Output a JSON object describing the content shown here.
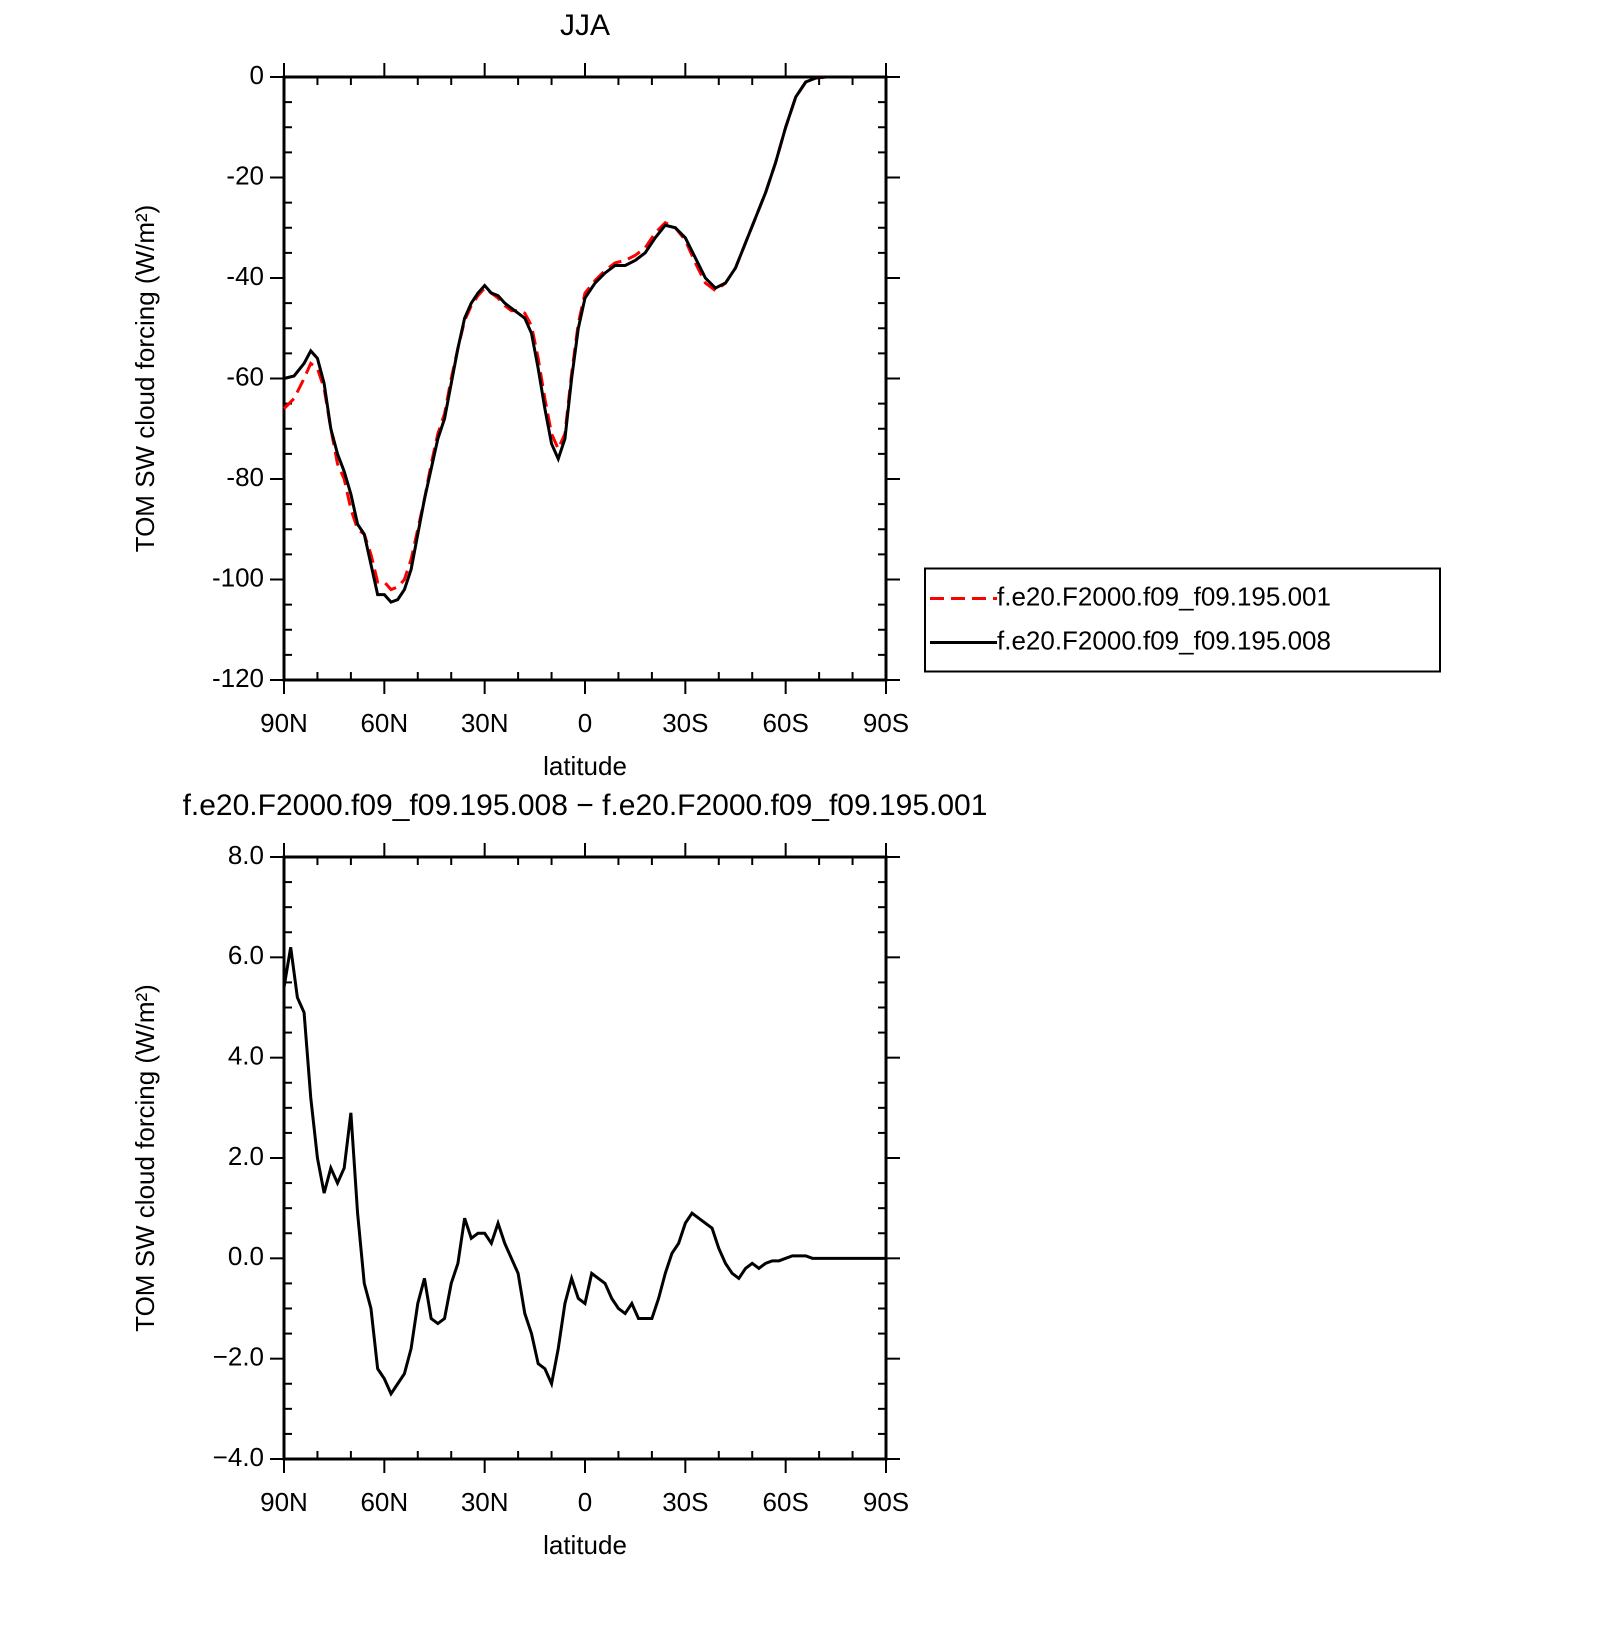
{
  "chart_data": [
    {
      "type": "line",
      "title": "JJA",
      "x_label": "latitude",
      "y_label": "TOM SW cloud forcing (W/m²)",
      "x": [
        90,
        87,
        84,
        82,
        80,
        78,
        76,
        74,
        72,
        70,
        68,
        66,
        64,
        62,
        60,
        58,
        56,
        54,
        52,
        50,
        48,
        46,
        44,
        42,
        40,
        38,
        36,
        34,
        32,
        30,
        28,
        26,
        24,
        22,
        20,
        18,
        16,
        14,
        12,
        10,
        8,
        6,
        4,
        2,
        0,
        -3,
        -6,
        -9,
        -12,
        -15,
        -18,
        -21,
        -24,
        -27,
        -30,
        -33,
        -36,
        -39,
        -42,
        -45,
        -48,
        -51,
        -54,
        -57,
        -60,
        -63,
        -66,
        -69,
        -72,
        -78,
        -84,
        -90
      ],
      "xlim": [
        90,
        -90
      ],
      "xticks": [
        {
          "value": 90,
          "label": "90N"
        },
        {
          "value": 60,
          "label": "60N"
        },
        {
          "value": 30,
          "label": "30N"
        },
        0,
        {
          "value": -30,
          "label": "30S"
        },
        {
          "value": -60,
          "label": "60S"
        },
        {
          "value": -90,
          "label": "90S"
        }
      ],
      "ylim": [
        -120,
        0
      ],
      "yticks": [
        0,
        -20,
        -40,
        -60,
        -80,
        -100,
        -120
      ],
      "legend": "right",
      "series": [
        {
          "name": "f.e20.F2000.f09_f09.195.001",
          "color": "#ff0000",
          "dashed": true,
          "values": [
            -66,
            -64,
            -60,
            -57,
            -58,
            -62,
            -70,
            -77,
            -80,
            -86,
            -90,
            -91,
            -95,
            -100.5,
            -100.5,
            -102,
            -101.5,
            -100,
            -96,
            -90,
            -84,
            -77,
            -71,
            -67,
            -60,
            -54,
            -48.5,
            -45.5,
            -43.5,
            -42,
            -43,
            -44,
            -45.5,
            -46.5,
            -46.5,
            -47,
            -49.5,
            -56,
            -64,
            -71,
            -74,
            -71,
            -59,
            -49,
            -43,
            -40.5,
            -38.5,
            -37,
            -36.5,
            -35.5,
            -34,
            -31,
            -29,
            -30,
            -32.5,
            -37,
            -41,
            -42.5,
            -41,
            -38,
            -33,
            -28,
            -23,
            -17,
            -10,
            -4,
            -1,
            -0.2,
            0,
            0,
            0,
            0
          ]
        },
        {
          "name": "f.e20.F2000.f09_f09.195.008",
          "color": "#000000",
          "dashed": false,
          "values": [
            -60,
            -59.5,
            -57,
            -54.5,
            -56,
            -61,
            -70,
            -75,
            -78.5,
            -83,
            -89,
            -91,
            -97,
            -103,
            -103,
            -104.5,
            -104,
            -102,
            -98,
            -91,
            -84,
            -78,
            -72,
            -68,
            -61,
            -54,
            -48,
            -45,
            -43,
            -41.5,
            -43,
            -43.5,
            -45,
            -46,
            -47,
            -48,
            -51,
            -58,
            -66,
            -73,
            -76,
            -72,
            -60,
            -50,
            -44,
            -41,
            -39,
            -37.5,
            -37.5,
            -36.5,
            -35,
            -32,
            -29.5,
            -30,
            -32,
            -36,
            -40,
            -42,
            -41,
            -38,
            -33,
            -28,
            -23,
            -17,
            -10,
            -4,
            -1,
            -0.2,
            0,
            0,
            0,
            0
          ]
        }
      ]
    },
    {
      "type": "line",
      "title": "f.e20.F2000.f09_f09.195.008 − f.e20.F2000.f09_f09.195.001",
      "x_label": "latitude",
      "y_label": "TOM SW cloud forcing (W/m²)",
      "x": [
        90,
        88,
        86,
        84,
        82,
        80,
        78,
        76,
        74,
        72,
        70,
        68,
        66,
        64,
        62,
        60,
        58,
        56,
        54,
        52,
        50,
        48,
        46,
        44,
        42,
        40,
        38,
        36,
        34,
        32,
        30,
        28,
        26,
        24,
        22,
        20,
        18,
        16,
        14,
        12,
        10,
        8,
        6,
        4,
        2,
        0,
        -2,
        -4,
        -6,
        -8,
        -10,
        -12,
        -14,
        -16,
        -18,
        -20,
        -22,
        -24,
        -26,
        -28,
        -30,
        -32,
        -34,
        -36,
        -38,
        -40,
        -42,
        -44,
        -46,
        -48,
        -50,
        -52,
        -54,
        -56,
        -58,
        -60,
        -62,
        -64,
        -66,
        -68,
        -70,
        -72,
        -74,
        -76,
        -78,
        -80,
        -82,
        -84,
        -86,
        -88,
        -90
      ],
      "xlim": [
        90,
        -90
      ],
      "xticks": [
        {
          "value": 90,
          "label": "90N"
        },
        {
          "value": 60,
          "label": "60N"
        },
        {
          "value": 30,
          "label": "30N"
        },
        0,
        {
          "value": -30,
          "label": "30S"
        },
        {
          "value": -60,
          "label": "60S"
        },
        {
          "value": -90,
          "label": "90S"
        }
      ],
      "ylim": [
        -4,
        8
      ],
      "yticks": [
        {
          "value": 8,
          "label": "8.0"
        },
        {
          "value": 6,
          "label": "6.0"
        },
        {
          "value": 4,
          "label": "4.0"
        },
        {
          "value": 2,
          "label": "2.0"
        },
        {
          "value": 0,
          "label": "0.0"
        },
        {
          "value": -2,
          "label": "−2.0"
        },
        {
          "value": -4,
          "label": "−4.0"
        }
      ],
      "series": [
        {
          "color": "#000000",
          "dashed": false,
          "values": [
            5.4,
            6.2,
            5.2,
            4.9,
            3.2,
            2.0,
            1.3,
            1.8,
            1.5,
            1.8,
            2.9,
            0.9,
            -0.5,
            -1.0,
            -2.2,
            -2.4,
            -2.7,
            -2.5,
            -2.3,
            -1.8,
            -0.9,
            -0.4,
            -1.2,
            -1.3,
            -1.2,
            -0.5,
            -0.1,
            0.8,
            0.4,
            0.5,
            0.5,
            0.3,
            0.7,
            0.3,
            0.0,
            -0.3,
            -1.1,
            -1.5,
            -2.1,
            -2.2,
            -2.5,
            -1.8,
            -0.9,
            -0.4,
            -0.8,
            -0.9,
            -0.3,
            -0.4,
            -0.5,
            -0.8,
            -1.0,
            -1.1,
            -0.9,
            -1.2,
            -1.2,
            -1.2,
            -0.8,
            -0.3,
            0.1,
            0.3,
            0.7,
            0.9,
            0.8,
            0.7,
            0.6,
            0.2,
            -0.1,
            -0.3,
            -0.4,
            -0.2,
            -0.1,
            -0.2,
            -0.1,
            -0.05,
            -0.05,
            0.0,
            0.05,
            0.05,
            0.05,
            0,
            0,
            0,
            0,
            0,
            0,
            0,
            0,
            0,
            0,
            0,
            0
          ]
        }
      ]
    }
  ]
}
